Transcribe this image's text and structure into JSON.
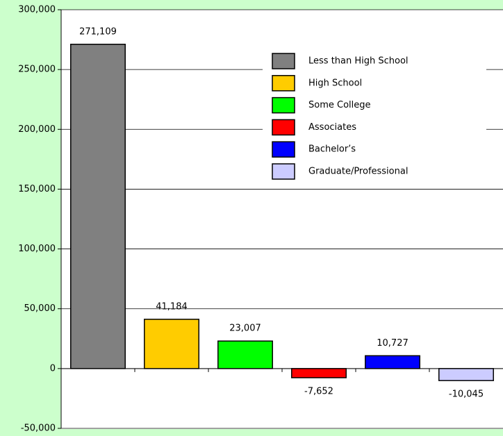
{
  "chart_data": {
    "type": "bar",
    "categories": [
      "Less than High School",
      "High School",
      "Some College",
      "Associates",
      "Bachelor’s",
      "Graduate/Professional"
    ],
    "values": [
      271109,
      41184,
      23007,
      -7652,
      10727,
      -10045
    ],
    "value_labels": [
      "271,109",
      "41,184",
      "23,007",
      "-7,652",
      "10,727",
      "-10,045"
    ],
    "colors": [
      "#808080",
      "#ffcc00",
      "#00ff00",
      "#ff0000",
      "#0000ff",
      "#ccccff"
    ],
    "ylim": [
      -50000,
      300000
    ],
    "yticks": [
      {
        "value": -50000,
        "label": "-50,000"
      },
      0,
      {
        "value": 50000,
        "label": "50,000"
      },
      {
        "value": 100000,
        "label": "100,000"
      },
      {
        "value": 150000,
        "label": "150,000"
      },
      {
        "value": 200000,
        "label": "200,000"
      },
      {
        "value": 250000,
        "label": "250,000"
      },
      {
        "value": 300000,
        "label": "300,000"
      }
    ],
    "grid": true,
    "legend": "upper right"
  }
}
